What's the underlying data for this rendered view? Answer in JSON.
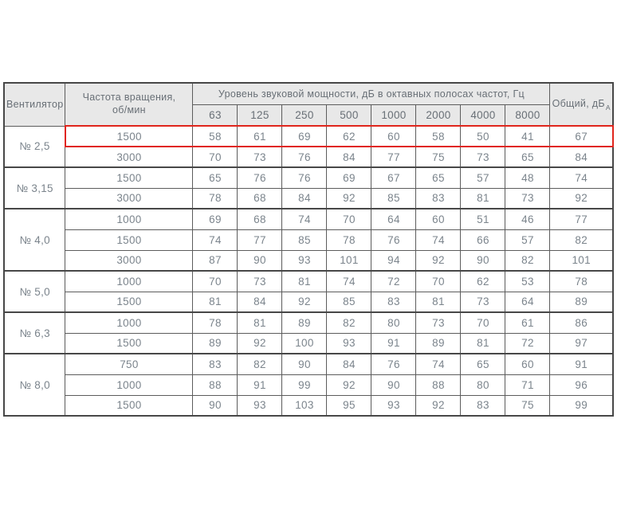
{
  "colors": {
    "header_bg": "#e8e8e8",
    "header_text": "#686f76",
    "cell_text": "#7b848c",
    "border": "#5c5c5c",
    "border_strong": "#474747",
    "highlight": "#e0251c"
  },
  "table": {
    "header": {
      "fan_label": "Вентилятор",
      "speed_label": "Частота вращения,\nоб/мин",
      "octave_label": "Уровень звуковой мощности, дБ в октавных полосах частот, Гц",
      "frequencies": [
        "63",
        "125",
        "250",
        "500",
        "1000",
        "2000",
        "4000",
        "8000"
      ],
      "total_label": "Общий, дБ",
      "total_sub": "А"
    },
    "groups": [
      {
        "fan": "№ 2,5",
        "rows": [
          {
            "speed": "1500",
            "values": [
              58,
              61,
              69,
              62,
              60,
              58,
              50,
              41
            ],
            "total": 67,
            "highlighted": true
          },
          {
            "speed": "3000",
            "values": [
              70,
              73,
              76,
              84,
              77,
              75,
              73,
              65
            ],
            "total": 84
          }
        ]
      },
      {
        "fan": "№ 3,15",
        "rows": [
          {
            "speed": "1500",
            "values": [
              65,
              76,
              76,
              69,
              67,
              65,
              57,
              48
            ],
            "total": 74
          },
          {
            "speed": "3000",
            "values": [
              78,
              68,
              84,
              92,
              85,
              83,
              81,
              73
            ],
            "total": 92
          }
        ]
      },
      {
        "fan": "№ 4,0",
        "rows": [
          {
            "speed": "1000",
            "values": [
              69,
              68,
              74,
              70,
              64,
              60,
              51,
              46
            ],
            "total": 77
          },
          {
            "speed": "1500",
            "values": [
              74,
              77,
              85,
              78,
              76,
              74,
              66,
              57
            ],
            "total": 82
          },
          {
            "speed": "3000",
            "values": [
              87,
              90,
              93,
              101,
              94,
              92,
              90,
              82
            ],
            "total": 101
          }
        ]
      },
      {
        "fan": "№ 5,0",
        "rows": [
          {
            "speed": "1000",
            "values": [
              70,
              73,
              81,
              74,
              72,
              70,
              62,
              53
            ],
            "total": 78
          },
          {
            "speed": "1500",
            "values": [
              81,
              84,
              92,
              85,
              83,
              81,
              73,
              64
            ],
            "total": 89
          }
        ]
      },
      {
        "fan": "№ 6,3",
        "rows": [
          {
            "speed": "1000",
            "values": [
              78,
              81,
              89,
              82,
              80,
              73,
              70,
              61
            ],
            "total": 86
          },
          {
            "speed": "1500",
            "values": [
              89,
              92,
              100,
              93,
              91,
              89,
              81,
              72
            ],
            "total": 97
          }
        ]
      },
      {
        "fan": "№ 8,0",
        "rows": [
          {
            "speed": "750",
            "values": [
              83,
              82,
              90,
              84,
              76,
              74,
              65,
              60
            ],
            "total": 91
          },
          {
            "speed": "1000",
            "values": [
              88,
              91,
              99,
              92,
              90,
              88,
              80,
              71
            ],
            "total": 96
          },
          {
            "speed": "1500",
            "values": [
              90,
              93,
              103,
              95,
              93,
              92,
              83,
              75
            ],
            "total": 99
          }
        ]
      }
    ]
  },
  "chart_data": {
    "type": "table",
    "title": "Уровень звуковой мощности, дБ в октавных полосах частот, Гц",
    "columns": [
      "Вентилятор",
      "Частота вращения, об/мин",
      "63",
      "125",
      "250",
      "500",
      "1000",
      "2000",
      "4000",
      "8000",
      "Общий, дБА"
    ],
    "rows": [
      [
        "№ 2,5",
        "1500",
        58,
        61,
        69,
        62,
        60,
        58,
        50,
        41,
        67
      ],
      [
        "№ 2,5",
        "3000",
        70,
        73,
        76,
        84,
        77,
        75,
        73,
        65,
        84
      ],
      [
        "№ 3,15",
        "1500",
        65,
        76,
        76,
        69,
        67,
        65,
        57,
        48,
        74
      ],
      [
        "№ 3,15",
        "3000",
        78,
        68,
        84,
        92,
        85,
        83,
        81,
        73,
        92
      ],
      [
        "№ 4,0",
        "1000",
        69,
        68,
        74,
        70,
        64,
        60,
        51,
        46,
        77
      ],
      [
        "№ 4,0",
        "1500",
        74,
        77,
        85,
        78,
        76,
        74,
        66,
        57,
        82
      ],
      [
        "№ 4,0",
        "3000",
        87,
        90,
        93,
        101,
        94,
        92,
        90,
        82,
        101
      ],
      [
        "№ 5,0",
        "1000",
        70,
        73,
        81,
        74,
        72,
        70,
        62,
        53,
        78
      ],
      [
        "№ 5,0",
        "1500",
        81,
        84,
        92,
        85,
        83,
        81,
        73,
        64,
        89
      ],
      [
        "№ 6,3",
        "1000",
        78,
        81,
        89,
        82,
        80,
        73,
        70,
        61,
        86
      ],
      [
        "№ 6,3",
        "1500",
        89,
        92,
        100,
        93,
        91,
        89,
        81,
        72,
        97
      ],
      [
        "№ 8,0",
        "750",
        83,
        82,
        90,
        84,
        76,
        74,
        65,
        60,
        91
      ],
      [
        "№ 8,0",
        "1000",
        88,
        91,
        99,
        92,
        90,
        88,
        80,
        71,
        96
      ],
      [
        "№ 8,0",
        "1500",
        90,
        93,
        103,
        95,
        93,
        92,
        83,
        75,
        99
      ]
    ],
    "highlighted_row_index": 0,
    "highlight_color": "#e0251c"
  }
}
